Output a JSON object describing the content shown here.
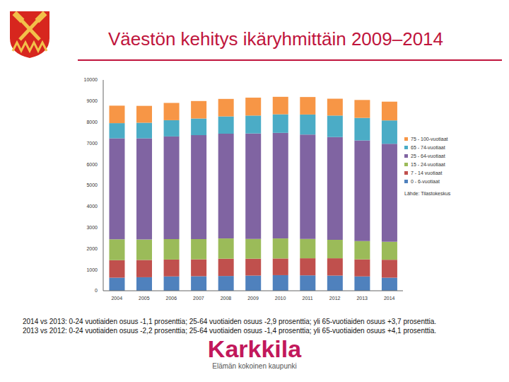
{
  "title": "Väestön kehitys ikäryhmittäin 2009–2014",
  "chart_data": {
    "type": "bar",
    "stacked": true,
    "grid": false,
    "legend": "right",
    "source": "Lähde: Tilastokeskus",
    "categories": [
      "2004",
      "2005",
      "2006",
      "2007",
      "2008",
      "2009",
      "2010",
      "2011",
      "2012",
      "2013",
      "2014"
    ],
    "ylim": [
      0,
      10000
    ],
    "yticks": [
      0,
      1000,
      2000,
      3000,
      4000,
      5000,
      6000,
      7000,
      8000,
      9000,
      10000
    ],
    "series": [
      {
        "name": "0 - 6-vuotiaat",
        "color": "#4f81bd",
        "values": [
          620,
          640,
          680,
          690,
          700,
          720,
          740,
          730,
          720,
          680,
          620
        ]
      },
      {
        "name": "7 - 14 vuotiaat",
        "color": "#c0504d",
        "values": [
          830,
          820,
          800,
          800,
          820,
          800,
          790,
          810,
          820,
          810,
          850
        ]
      },
      {
        "name": "15 - 24-vuotiaat",
        "color": "#9bbb59",
        "values": [
          990,
          970,
          970,
          960,
          960,
          940,
          950,
          920,
          880,
          870,
          850
        ]
      },
      {
        "name": "25 - 64-vuotiaat",
        "color": "#8064a2",
        "values": [
          4790,
          4800,
          4870,
          4930,
          4970,
          5000,
          5010,
          4950,
          4870,
          4770,
          4650
        ]
      },
      {
        "name": "65 - 74-vuotiaat",
        "color": "#4bacc6",
        "values": [
          720,
          740,
          770,
          790,
          820,
          850,
          880,
          950,
          1020,
          1070,
          1110
        ]
      },
      {
        "name": "75 - 100-vuotiaat",
        "color": "#f79646",
        "values": [
          830,
          800,
          820,
          830,
          830,
          850,
          830,
          830,
          800,
          850,
          890
        ]
      }
    ]
  },
  "notes": [
    "2014 vs 2013: 0-24 vuotiaiden osuus -1,1 prosenttia; 25-64 vuotiaiden osuus -2,9 prosenttia; yli 65-vuotiaiden osuus +3,7 prosenttia.",
    "2013 vs 2012: 0-24 vuotiaiden osuus -2,2 prosenttia; 25-64 vuotiaiden osuus -1,4 prosenttia; yli 65-vuotiaiden osuus +4,1 prosenttia."
  ],
  "logo": {
    "name": "Karkkila",
    "slogan": "Elämän kokoinen kaupunki"
  }
}
